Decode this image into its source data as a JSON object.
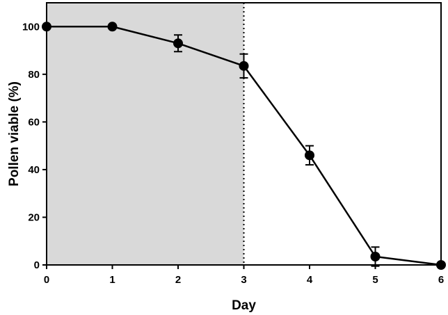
{
  "chart_data": {
    "type": "line",
    "title": "",
    "xlabel": "Day",
    "ylabel": "Pollen viable (%)",
    "xlim": [
      0,
      6
    ],
    "ylim": [
      0,
      110
    ],
    "x_ticks": [
      "0",
      "1",
      "2",
      "3",
      "4",
      "5",
      "6"
    ],
    "y_ticks": [
      "0",
      "20",
      "40",
      "60",
      "80",
      "100"
    ],
    "grid": false,
    "legend": "none",
    "shaded_region": {
      "x_start": 0,
      "x_end": 3,
      "color": "#d9d9d9"
    },
    "reference_line": {
      "x": 3,
      "style": "dotted"
    },
    "series": [
      {
        "x": [
          0,
          1,
          2,
          3,
          4,
          5,
          6
        ],
        "values": [
          100,
          100,
          93,
          83.5,
          46,
          3.5,
          0
        ],
        "error": [
          0,
          0,
          3.5,
          5,
          4,
          4,
          0
        ],
        "color": "#000000"
      }
    ]
  }
}
